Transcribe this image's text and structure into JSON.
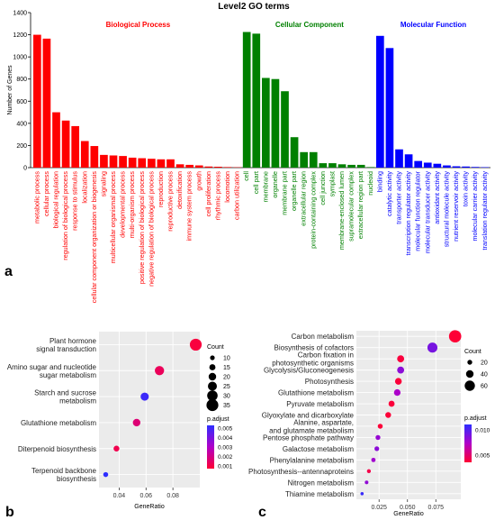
{
  "panel_labels": {
    "a": "a",
    "b": "b",
    "c": "c"
  },
  "colors": {
    "bp": "#ff0000",
    "cc": "#008000",
    "mf": "#0000ff",
    "panel_bg": "#ebebeb",
    "grid": "#ffffff",
    "padj_low": "#ff0033",
    "padj_mid": "#b000c8",
    "padj_high": "#2e2eff"
  },
  "chart_data": [
    {
      "type": "bar",
      "title": "Level2 GO terms",
      "ylabel": "Number of Genes",
      "ylim": [
        0,
        1400
      ],
      "yticks": [
        0,
        200,
        400,
        600,
        800,
        1000,
        1200,
        1400
      ],
      "grid": false,
      "groups": [
        {
          "name": "Biological Process",
          "color_key": "bp",
          "categories": [
            "metabolic process",
            "cellular process",
            "biological regulation",
            "regulation of biological process",
            "response to stimulus",
            "localization",
            "cellular component organization or biogenesis",
            "signaling",
            "multicellular organismal process",
            "developmental process",
            "multi-organism process",
            "positive regulation of biological process",
            "negative regulation of biological process",
            "reproduction",
            "reproductive process",
            "detoxification",
            "immune system process",
            "growth",
            "cell proliferation",
            "rhythmic process",
            "locomotion",
            "carbon utilization"
          ],
          "values": [
            1200,
            1165,
            500,
            425,
            375,
            240,
            195,
            115,
            110,
            105,
            90,
            85,
            80,
            75,
            75,
            30,
            25,
            20,
            10,
            8,
            5,
            3
          ]
        },
        {
          "name": "Cellular Component",
          "color_key": "cc",
          "categories": [
            "cell",
            "cell part",
            "membrane",
            "organelle",
            "membrane part",
            "organelle part",
            "extracellular region",
            "protein-containing complex",
            "cell junction",
            "symplast",
            "membrane-enclosed lumen",
            "supramolecular complex",
            "extracellular region part",
            "nucleoid"
          ],
          "values": [
            1225,
            1210,
            810,
            800,
            690,
            275,
            140,
            140,
            40,
            40,
            30,
            25,
            25,
            5
          ]
        },
        {
          "name": "Molecular Function",
          "color_key": "mf",
          "categories": [
            "binding",
            "catalytic activity",
            "transporter activity",
            "transcription regulator activity",
            "molecular function regulator",
            "molecular transducer activity",
            "antioxidant activity",
            "structural molecule activity",
            "nutrient reservoir activity",
            "toxin activity",
            "molecular carrier activity",
            "translation regulator activity"
          ],
          "values": [
            1190,
            1080,
            165,
            120,
            60,
            45,
            35,
            20,
            12,
            10,
            6,
            4
          ]
        }
      ]
    },
    {
      "type": "scatter",
      "xlabel": "GeneRatio",
      "xlim": [
        0.025,
        0.1
      ],
      "xticks": [
        0.04,
        0.06,
        0.08
      ],
      "categories": [
        "Plant hormone\nsignal transduction",
        "Amino sugar and nucleotide\nsugar metabolism",
        "Starch and sucrose\nmetabolism",
        "Glutathione metabolism",
        "Diterpenoid biosynthesis",
        "Terpenoid backbone\nbiosynthesis"
      ],
      "x": [
        0.097,
        0.07,
        0.059,
        0.053,
        0.038,
        0.03
      ],
      "count": [
        35,
        26,
        22,
        20,
        14,
        11
      ],
      "p_adjust": [
        0.0005,
        0.001,
        0.0055,
        0.0015,
        0.0008,
        0.0058
      ],
      "size_legend": {
        "title": "Count",
        "values": [
          10,
          15,
          20,
          25,
          30,
          35
        ]
      },
      "color_legend": {
        "title": "p.adjust",
        "ticks": [
          "0.005",
          "0.004",
          "0.003",
          "0.002",
          "0.001"
        ],
        "range": [
          0.0003,
          0.0058
        ]
      }
    },
    {
      "type": "scatter",
      "xlabel": "GeneRatio",
      "xlim": [
        0.005,
        0.097
      ],
      "xticks": [
        0.025,
        0.05,
        0.075
      ],
      "xtick_labels": [
        "0.025",
        "0.050",
        "0.075"
      ],
      "categories": [
        "Carbon metabolism",
        "Biosynthesis of cofactors",
        "Carbon fixation in\nphotosynthetic organisms",
        "Glycolysis/Gluconeogenesis",
        "Photosynthesis",
        "Glutathione metabolism",
        "Pyruvate metabolism",
        "Glyoxylate and dicarboxylate",
        "Alanine, aspartate,\nand glutamate metabolism",
        "Pentose phosphate pathway",
        "Galactose metabolism",
        "Phenylalanine metabolism",
        "Photosynthesis--antennaproteins",
        "Nitrogen metabolism",
        "Thiamine metabolism"
      ],
      "x": [
        0.092,
        0.072,
        0.044,
        0.044,
        0.042,
        0.041,
        0.036,
        0.033,
        0.026,
        0.024,
        0.023,
        0.02,
        0.016,
        0.014,
        0.01
      ],
      "count": [
        75,
        58,
        36,
        36,
        34,
        33,
        29,
        27,
        21,
        20,
        19,
        16,
        13,
        11,
        8
      ],
      "p_adjust": [
        0.0002,
        0.009,
        0.0005,
        0.008,
        0.0004,
        0.0065,
        0.0004,
        0.0003,
        0.0003,
        0.0075,
        0.008,
        0.007,
        0.001,
        0.0078,
        0.012
      ],
      "size_legend": {
        "title": "Count",
        "values": [
          20,
          40,
          60
        ]
      },
      "color_legend": {
        "title": "p.adjust",
        "ticks": [
          "0.010",
          "0.005"
        ],
        "range": [
          0.0001,
          0.0125
        ]
      }
    }
  ]
}
